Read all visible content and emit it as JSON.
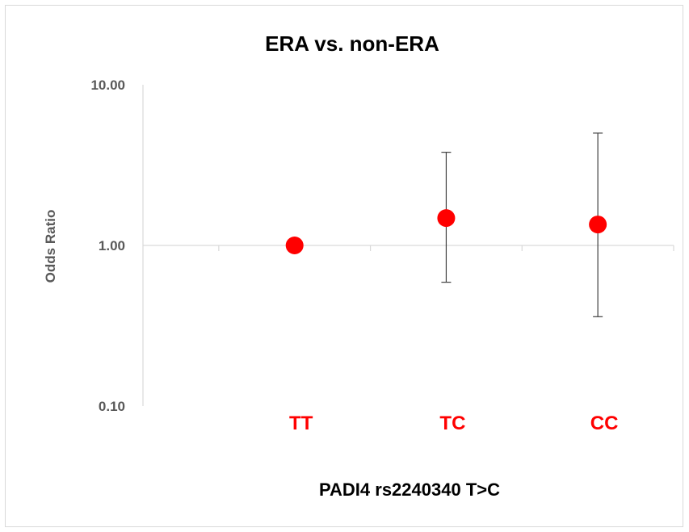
{
  "chart_data": {
    "type": "scatter",
    "title": "ERA vs. non-ERA",
    "xlabel": "PADI4 rs2240340 T>C",
    "ylabel": "Odds Ratio",
    "y_scale": "log",
    "ylim": [
      0.1,
      10
    ],
    "y_ticks": [
      "10.00",
      "1.00",
      "0.10"
    ],
    "y_tick_values": [
      10,
      1,
      0.1
    ],
    "categories": [
      "TT",
      "TC",
      "CC"
    ],
    "series": [
      {
        "values": [
          1.0,
          1.48,
          1.35
        ],
        "lower": [
          1.0,
          0.59,
          0.36
        ],
        "upper": [
          1.0,
          3.8,
          5.0
        ]
      }
    ],
    "grid": false,
    "colors": {
      "marker": "#ff0000",
      "category_label": "#ff0000",
      "error_bar": "#404040",
      "axis": "#d9d9d9"
    }
  }
}
